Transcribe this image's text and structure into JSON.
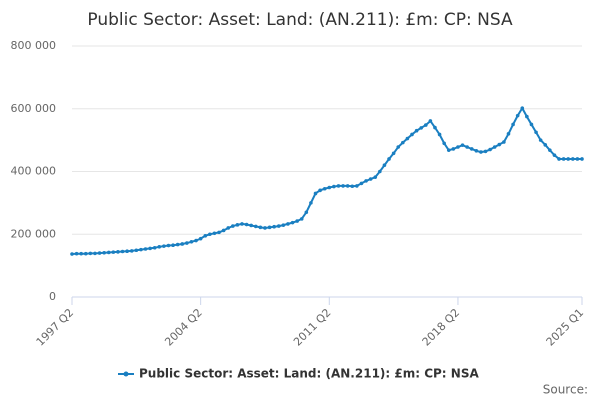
{
  "chart_data": {
    "type": "line",
    "title": "Public Sector: Asset: Land: (AN.211): £m: CP: NSA",
    "source": "Source:",
    "categories": [
      "1997 Q2",
      null,
      null,
      null,
      null,
      null,
      null,
      null,
      null,
      null,
      null,
      null,
      null,
      null,
      null,
      null,
      null,
      null,
      null,
      null,
      null,
      null,
      null,
      null,
      null,
      null,
      null,
      null,
      "2004 Q2",
      null,
      null,
      null,
      null,
      null,
      null,
      null,
      null,
      null,
      null,
      null,
      null,
      null,
      null,
      null,
      null,
      null,
      null,
      null,
      null,
      null,
      null,
      null,
      null,
      null,
      null,
      null,
      "2011 Q2",
      null,
      null,
      null,
      null,
      null,
      null,
      null,
      null,
      null,
      null,
      null,
      null,
      null,
      null,
      null,
      null,
      null,
      null,
      null,
      null,
      null,
      null,
      null,
      null,
      null,
      null,
      null,
      "2018 Q2",
      null,
      null,
      null,
      null,
      null,
      null,
      null,
      null,
      null,
      null,
      null,
      null,
      null,
      null,
      null,
      null,
      null,
      null,
      null,
      null,
      null,
      null,
      null,
      null,
      null,
      null,
      "2025 Q1"
    ],
    "series": [
      {
        "name": "Public Sector: Asset: Land: (AN.211): £m: CP: NSA",
        "color": "#1a7fc1",
        "values": [
          137000,
          138000,
          138000,
          138000,
          139000,
          139000,
          140000,
          141000,
          142000,
          143000,
          144000,
          145000,
          146000,
          147000,
          149000,
          151000,
          153000,
          155000,
          157000,
          160000,
          162000,
          164000,
          165000,
          167000,
          169000,
          172000,
          176000,
          180000,
          186000,
          195000,
          200000,
          203000,
          206000,
          212000,
          220000,
          226000,
          230000,
          233000,
          231000,
          228000,
          225000,
          222000,
          220000,
          222000,
          224000,
          226000,
          229000,
          233000,
          237000,
          242000,
          249000,
          270000,
          300000,
          330000,
          340000,
          345000,
          349000,
          352000,
          354000,
          354000,
          354000,
          353000,
          354000,
          362000,
          370000,
          376000,
          382000,
          400000,
          420000,
          440000,
          458000,
          478000,
          492000,
          505000,
          518000,
          530000,
          539000,
          548000,
          561000,
          540000,
          518000,
          490000,
          468000,
          472000,
          478000,
          484000,
          478000,
          472000,
          466000,
          462000,
          464000,
          470000,
          478000,
          486000,
          494000,
          520000,
          550000,
          578000,
          602000,
          575000,
          550000,
          525000,
          500000,
          485000,
          468000,
          452000,
          440000,
          440000,
          440000,
          440000,
          440000,
          440000
        ]
      }
    ],
    "ylim": [
      0,
      800000
    ],
    "yticks": [
      0,
      {
        "value": 200000,
        "label": "200 000"
      },
      {
        "value": 400000,
        "label": "400 000"
      },
      {
        "value": 600000,
        "label": "600 000"
      },
      {
        "value": 800000,
        "label": "800 000"
      }
    ],
    "grid": true,
    "legend": "bottom"
  }
}
